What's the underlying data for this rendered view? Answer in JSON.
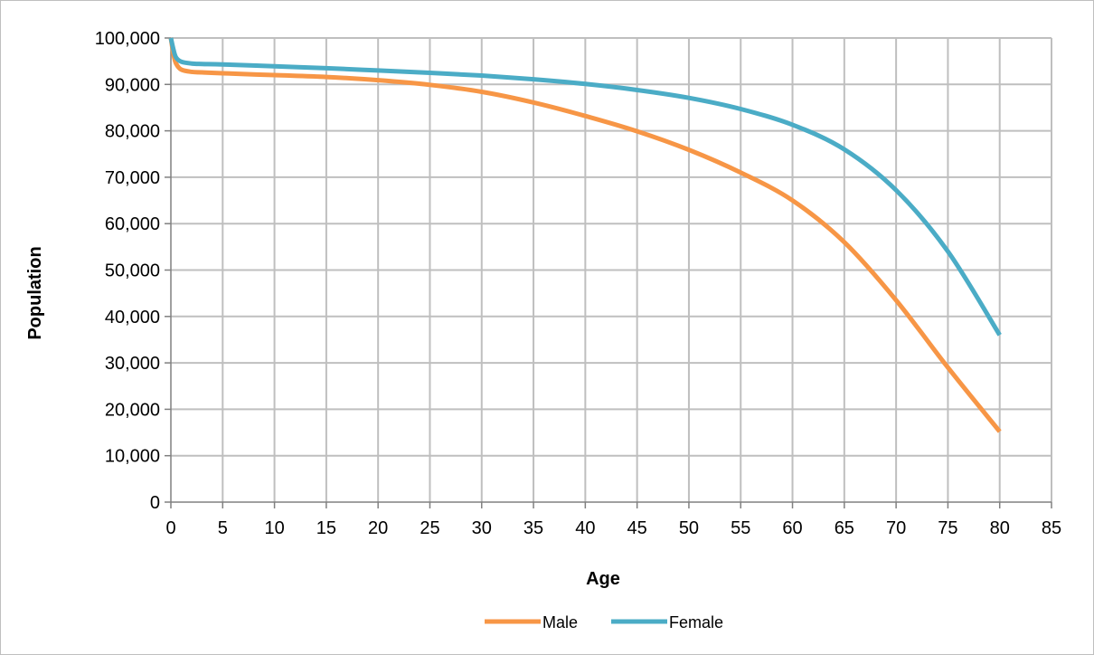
{
  "chart_data": {
    "type": "line",
    "title": "",
    "xlabel": "Age",
    "ylabel": "Population",
    "xlim": [
      0,
      85
    ],
    "ylim": [
      0,
      100000
    ],
    "x_ticks": [
      0,
      5,
      10,
      15,
      20,
      25,
      30,
      35,
      40,
      45,
      50,
      55,
      60,
      65,
      70,
      75,
      80,
      85
    ],
    "y_ticks": [
      0,
      10000,
      20000,
      30000,
      40000,
      50000,
      60000,
      70000,
      80000,
      90000,
      100000
    ],
    "x_tick_labels": [
      "0",
      "5",
      "10",
      "15",
      "20",
      "25",
      "30",
      "35",
      "40",
      "45",
      "50",
      "55",
      "60",
      "65",
      "70",
      "75",
      "80",
      "85"
    ],
    "y_tick_labels": [
      "0",
      "10,000",
      "20,000",
      "30,000",
      "40,000",
      "50,000",
      "60,000",
      "70,000",
      "80,000",
      "90,000",
      "100,000"
    ],
    "grid": true,
    "legend": "bottom",
    "series": [
      {
        "name": "Male",
        "color": "#f79646",
        "x": [
          0,
          0.25,
          0.5,
          1,
          2,
          3,
          5,
          10,
          15,
          20,
          25,
          30,
          35,
          40,
          45,
          50,
          55,
          60,
          65,
          70,
          75,
          80
        ],
        "y": [
          100000,
          96500,
          94500,
          93200,
          92700,
          92600,
          92400,
          92000,
          91600,
          90900,
          89900,
          88400,
          86100,
          83200,
          79900,
          75900,
          71000,
          65000,
          56000,
          43500,
          29000,
          15200
        ]
      },
      {
        "name": "Female",
        "color": "#4bacc6",
        "x": [
          0,
          0.25,
          0.5,
          1,
          2,
          3,
          5,
          10,
          15,
          20,
          25,
          30,
          35,
          40,
          45,
          50,
          55,
          60,
          65,
          70,
          75,
          80
        ],
        "y": [
          100000,
          97500,
          95800,
          94900,
          94500,
          94400,
          94300,
          93900,
          93500,
          93000,
          92500,
          91900,
          91100,
          90100,
          88800,
          87100,
          84700,
          81300,
          76000,
          67200,
          54000,
          36000
        ]
      }
    ]
  }
}
